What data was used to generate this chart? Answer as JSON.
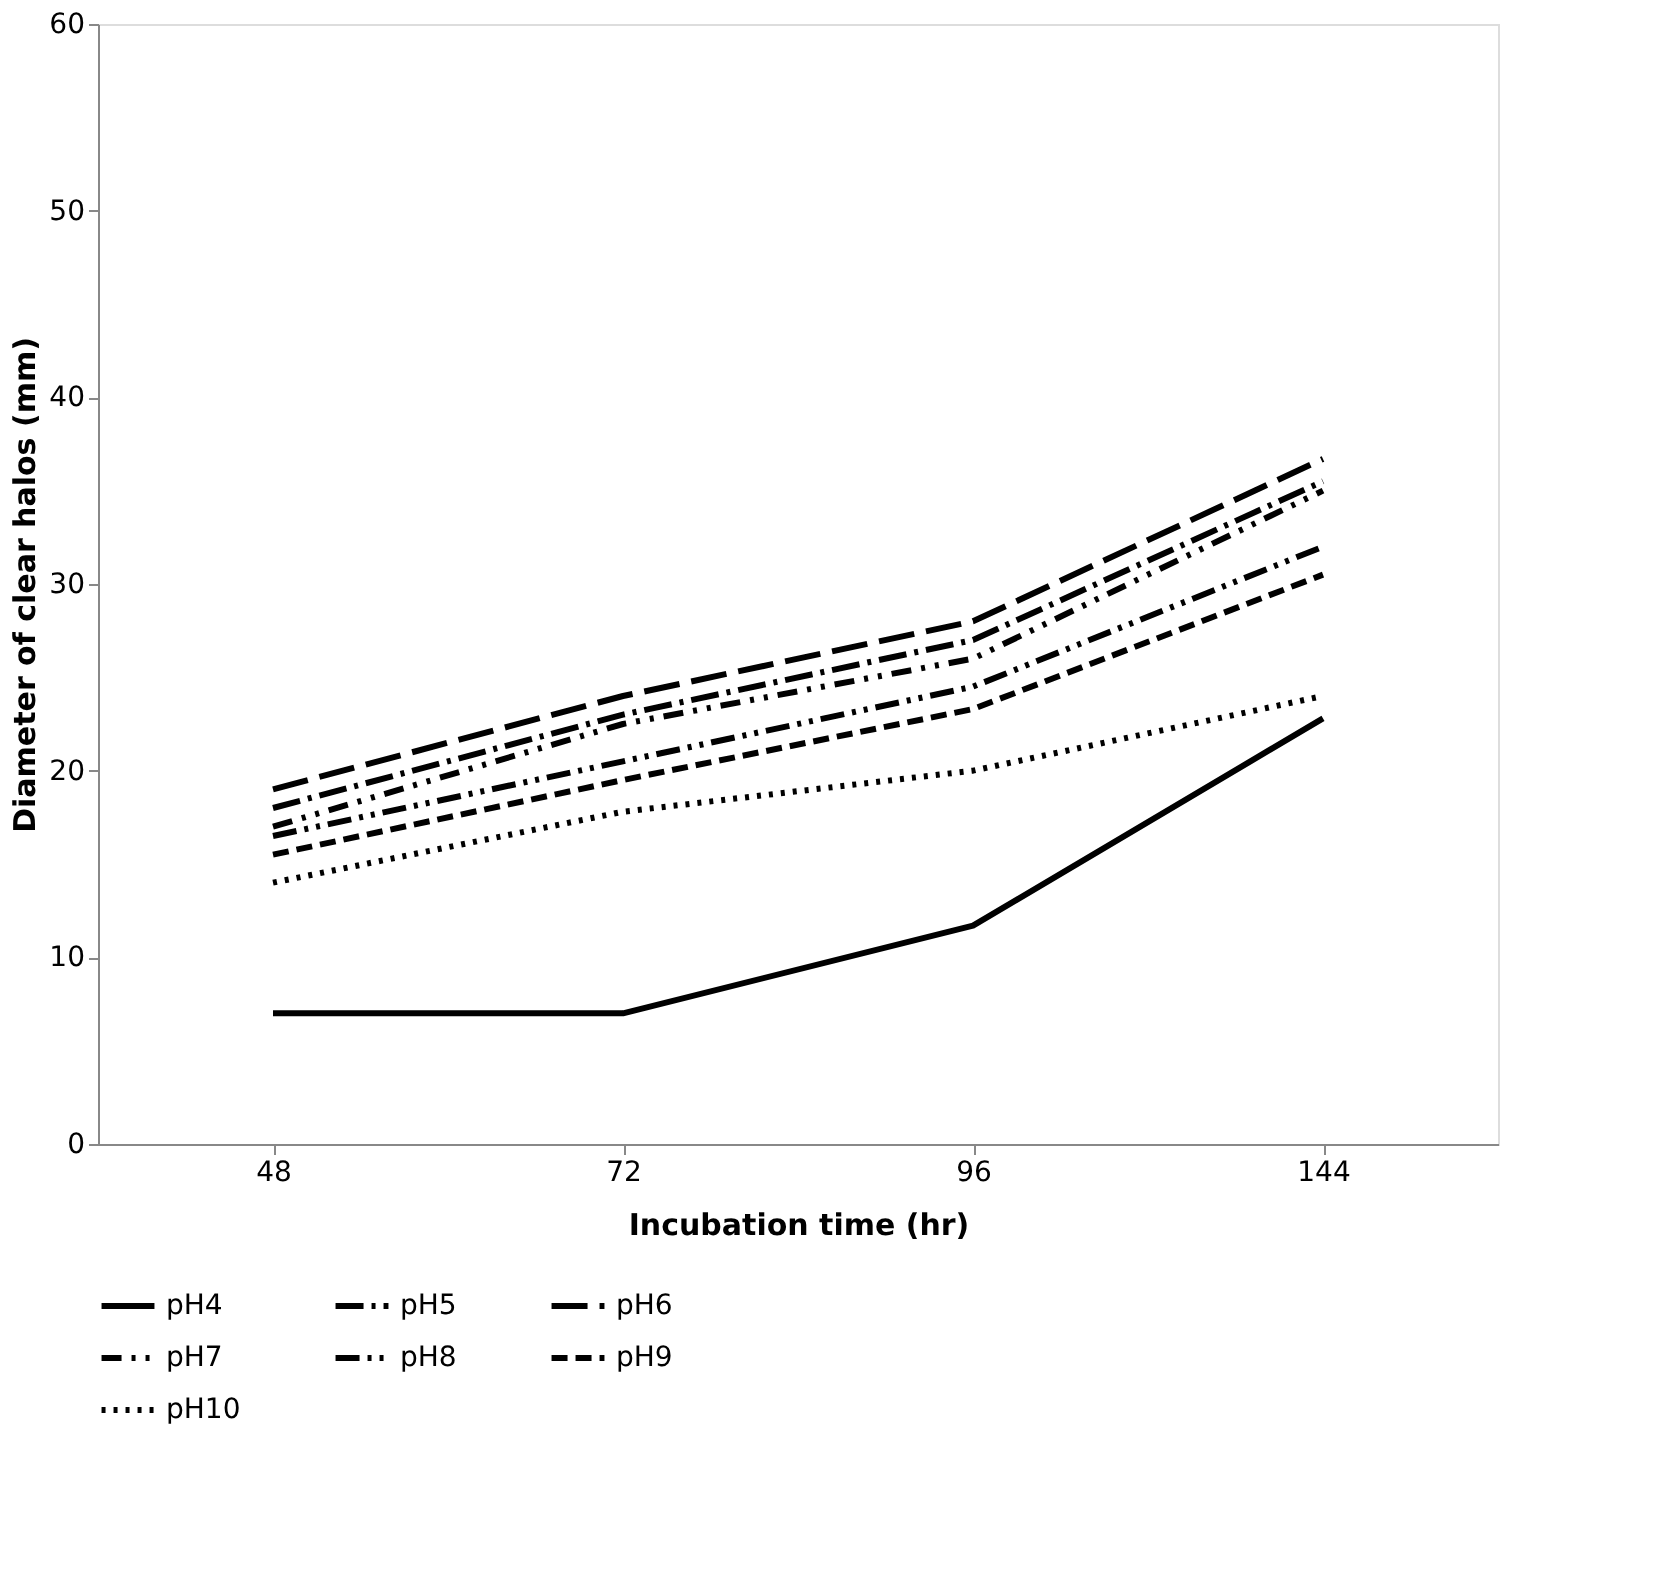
{
  "chart_data": {
    "type": "line",
    "xlabel": "Incubation time (hr)",
    "ylabel": "Diameter of clear halos  (mm)",
    "categories": [
      "48",
      "72",
      "96",
      "144"
    ],
    "ylim": [
      0,
      60
    ],
    "yticks": [
      0,
      10,
      20,
      30,
      40,
      50,
      60
    ],
    "grid": false,
    "legend": "bottom",
    "marker": "none",
    "series": [
      {
        "name": "pH4",
        "color": "#000000",
        "line_style": "solid",
        "values": [
          7,
          7,
          11.7,
          22.8
        ]
      },
      {
        "name": "pH5",
        "color": "#000000",
        "line_style": "dashed",
        "values": [
          18,
          23,
          27,
          35.5
        ]
      },
      {
        "name": "pH6",
        "color": "#000000",
        "line_style": "dashed",
        "values": [
          19,
          24,
          28,
          36.7
        ]
      },
      {
        "name": "pH7",
        "color": "#000000",
        "line_style": "dashed",
        "values": [
          17,
          22.5,
          26,
          35
        ]
      },
      {
        "name": "pH8",
        "color": "#000000",
        "line_style": "dashed",
        "values": [
          16.5,
          20.5,
          24.5,
          32
        ]
      },
      {
        "name": "pH9",
        "color": "#000000",
        "line_style": "dashed",
        "values": [
          15.5,
          19.5,
          23.3,
          30.5
        ]
      },
      {
        "name": "pH10",
        "color": "#000000",
        "line_style": "dotted",
        "values": [
          14,
          17.8,
          20,
          24
        ]
      }
    ]
  }
}
